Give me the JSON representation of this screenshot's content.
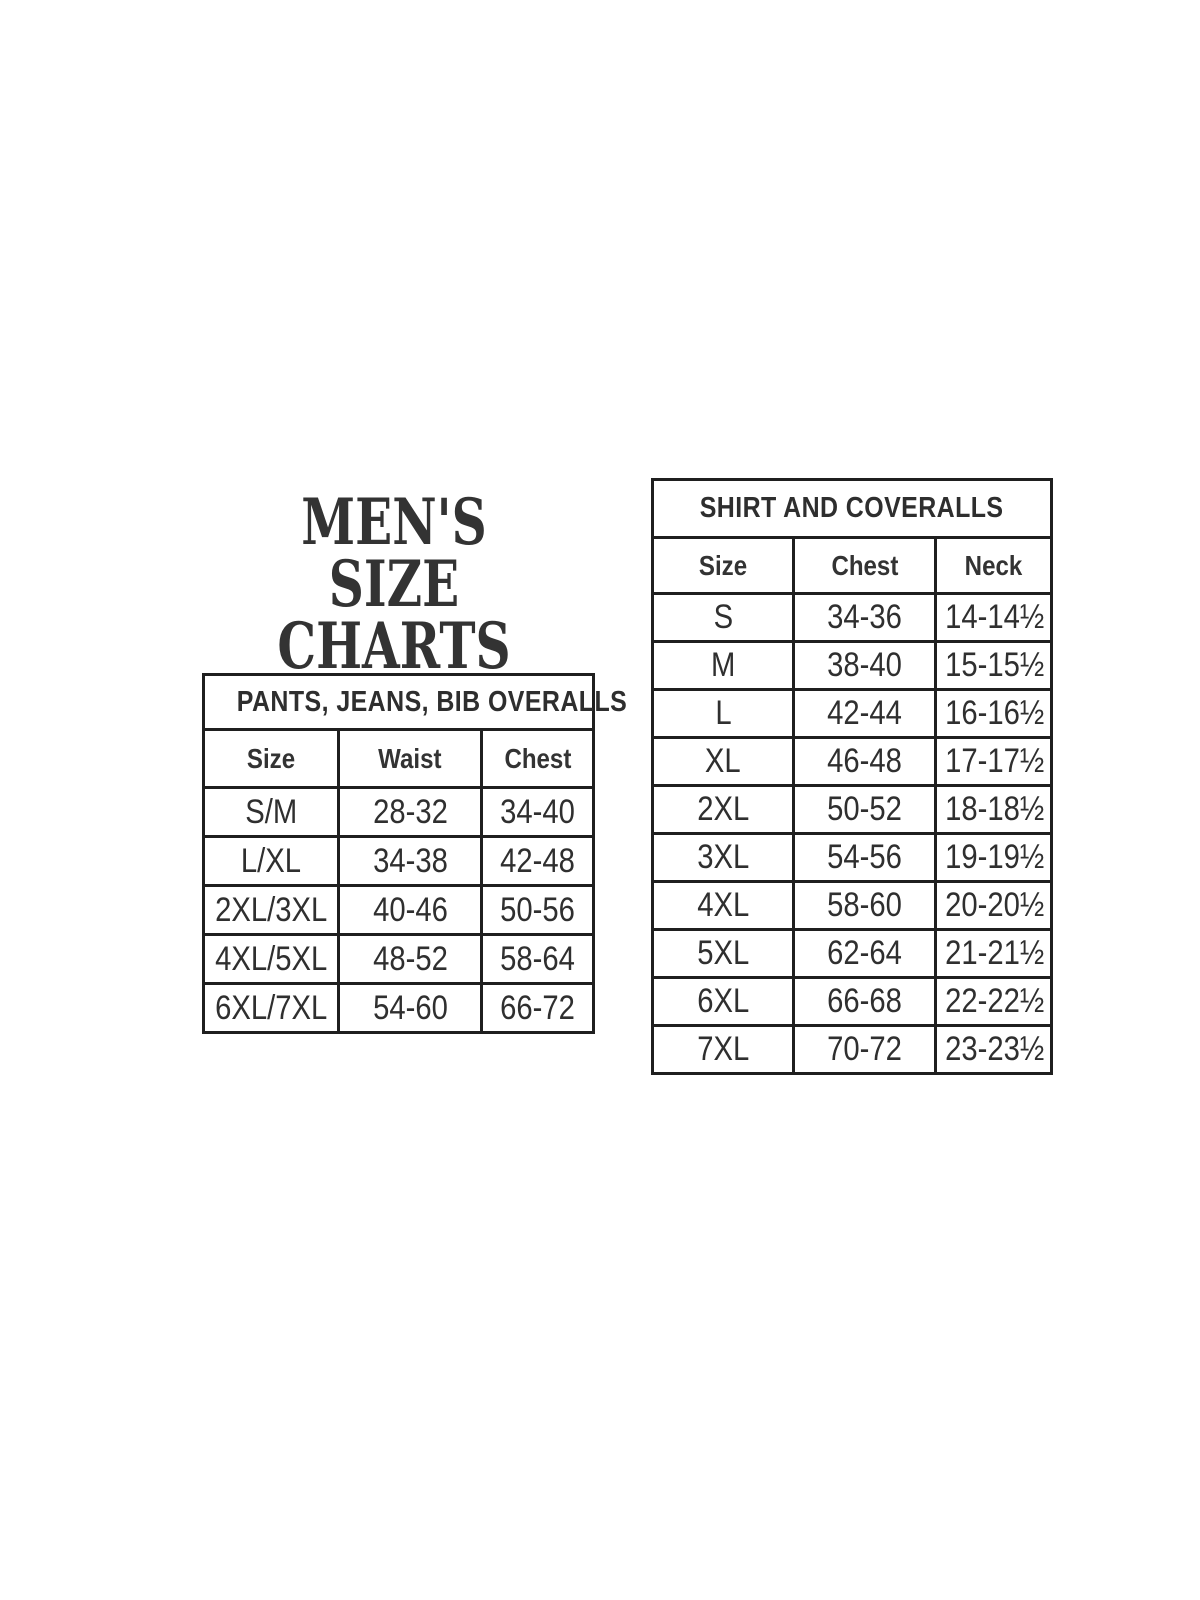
{
  "colors": {
    "background": "#ffffff",
    "title_text": "#333333",
    "table_text": "#2f2f2f",
    "border": "#1f1f1f"
  },
  "title": {
    "line1": "MEN'S SIZE",
    "line2": "CHARTS"
  },
  "tables": {
    "pants": {
      "title": "PANTS, JEANS, BIB OVERALLS",
      "columns": [
        "Size",
        "Waist",
        "Chest"
      ],
      "rows": [
        [
          "S/M",
          "28-32",
          "34-40"
        ],
        [
          "L/XL",
          "34-38",
          "42-48"
        ],
        [
          "2XL/3XL",
          "40-46",
          "50-56"
        ],
        [
          "4XL/5XL",
          "48-52",
          "58-64"
        ],
        [
          "6XL/7XL",
          "54-60",
          "66-72"
        ]
      ]
    },
    "shirts": {
      "title": "SHIRT AND COVERALLS",
      "columns": [
        "Size",
        "Chest",
        "Neck"
      ],
      "rows": [
        [
          "S",
          "34-36",
          "14-14½"
        ],
        [
          "M",
          "38-40",
          "15-15½"
        ],
        [
          "L",
          "42-44",
          "16-16½"
        ],
        [
          "XL",
          "46-48",
          "17-17½"
        ],
        [
          "2XL",
          "50-52",
          "18-18½"
        ],
        [
          "3XL",
          "54-56",
          "19-19½"
        ],
        [
          "4XL",
          "58-60",
          "20-20½"
        ],
        [
          "5XL",
          "62-64",
          "21-21½"
        ],
        [
          "6XL",
          "66-68",
          "22-22½"
        ],
        [
          "7XL",
          "70-72",
          "23-23½"
        ]
      ]
    }
  }
}
